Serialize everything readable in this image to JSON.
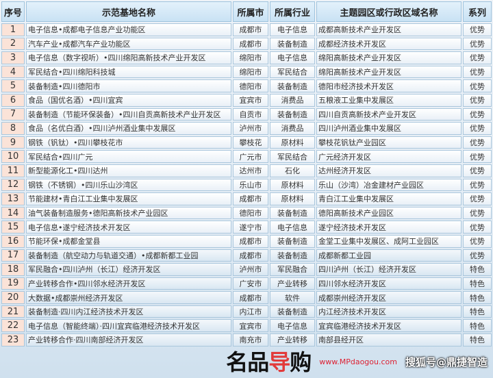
{
  "headers": [
    "序号",
    "示范基地名称",
    "所属市",
    "所属行业",
    "主题园区或行政区域名称",
    "系列"
  ],
  "rows": [
    [
      "1",
      "电子信息•成都电子信息产业功能区",
      "成都市",
      "电子信息",
      "成都高新技术产业开发区",
      "优势"
    ],
    [
      "2",
      "汽车产业•成都汽车产业功能区",
      "成都市",
      "装备制造",
      "成都经济技术开发区",
      "优势"
    ],
    [
      "3",
      "电子信息（数字视听）•四川绵阳高新技术产业开发区",
      "绵阳市",
      "电子信息",
      "绵阳高新技术产业开发区",
      "优势"
    ],
    [
      "4",
      "军民结合•四川绵阳科技城",
      "绵阳市",
      "军民结合",
      "绵阳高新技术产业开发区",
      "优势"
    ],
    [
      "5",
      "装备制造•四川德阳市",
      "德阳市",
      "装备制造",
      "德阳市经济技术开发区",
      "优势"
    ],
    [
      "6",
      "食品（国优名酒）•四川宜宾",
      "宜宾市",
      "消费品",
      "五粮液工业集中发展区",
      "优势"
    ],
    [
      "7",
      "装备制造（节能环保装备）•四川自贡高新技术产业开发区",
      "自贡市",
      "装备制造",
      "四川自贡高新技术产业开发区",
      "优势"
    ],
    [
      "8",
      "食品（名优白酒）•四川泸州酒业集中发展区",
      "泸州市",
      "消费品",
      "四川泸州酒业集中发展区",
      "优势"
    ],
    [
      "9",
      "钢铁（钒钛）•四川攀枝花市",
      "攀枝花",
      "原材料",
      "攀枝花钒钛产业园区",
      "优势"
    ],
    [
      "10",
      "军民结合•四川广元",
      "广元市",
      "军民结合",
      "广元经济开发区",
      "优势"
    ],
    [
      "11",
      "新型能源化工•四川达州",
      "达州市",
      "石化",
      "达州经济开发区",
      "优势"
    ],
    [
      "12",
      "钢铁（不锈钢）•四川乐山沙湾区",
      "乐山市",
      "原材料",
      "乐山（沙湾）冶金建材产业园区",
      "优势"
    ],
    [
      "13",
      "节能建材•青白江工业集中发展区",
      "成都市",
      "原材料",
      "青白江工业集中发展区",
      "优势"
    ],
    [
      "14",
      "油气装备制造服务•德阳高新技术产业园区",
      "德阳市",
      "装备制造",
      "德阳高新技术产业园区",
      "优势"
    ],
    [
      "15",
      "电子信息•遂宁经济技术开发区",
      "遂宁市",
      "电子信息",
      "遂宁经济技术开发区",
      "优势"
    ],
    [
      "16",
      "节能环保•成都金堂县",
      "成都市",
      "装备制造",
      "金堂工业集中发展区、成阿工业园区",
      "优势"
    ],
    [
      "17",
      "装备制造（航空动力与轨道交通）•成都新都工业园",
      "成都市",
      "装备制造",
      "成都新都工业园",
      "优势"
    ],
    [
      "18",
      "军民融合•四川泸州（长江）经济开发区",
      "泸州市",
      "军民融合",
      "四川泸州（长江）经济开发区",
      "特色"
    ],
    [
      "19",
      "产业转移合作•四川邻水经济开发区",
      "广安市",
      "产业转移",
      "四川邻水经济开发区",
      "特色"
    ],
    [
      "20",
      "大数据•成都崇州经济开发区",
      "成都市",
      "软件",
      "成都崇州经济开发区",
      "特色"
    ],
    [
      "21",
      "装备制造·四川内江经济技术开发区",
      "内江市",
      "装备制造",
      "内江经济技术开发区",
      "特色"
    ],
    [
      "22",
      "电子信息（智能终端）·四川宜宾临港经济技术开发区",
      "宜宾市",
      "电子信息",
      "宜宾临港经济技术开发区",
      "特色"
    ],
    [
      "23",
      "产业转移合作·四川南部经济开发区",
      "南充市",
      "产业转移",
      "南部县经开区",
      "特色"
    ]
  ],
  "watermark": {
    "logo_a": "名品",
    "logo_b": "导",
    "logo_c": "购",
    "url": "www.MPdaogou.com",
    "account": "搜狐号@鼎捷智造"
  }
}
